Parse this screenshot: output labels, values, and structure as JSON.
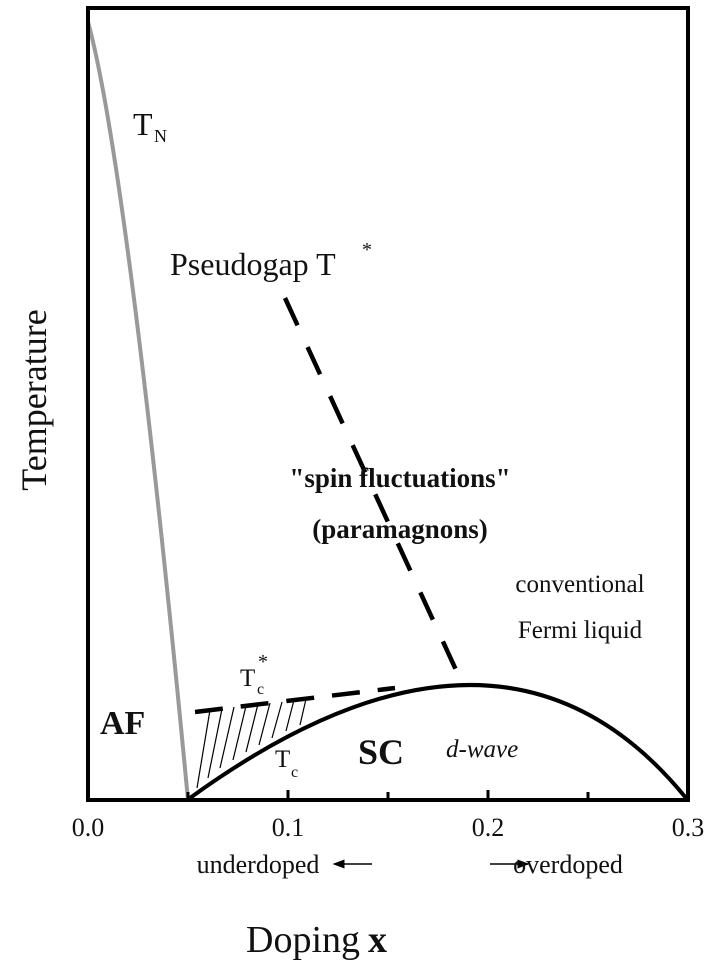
{
  "chart_data": {
    "type": "phase-diagram",
    "xlabel": "Doping",
    "xlabel_symbol": "x",
    "ylabel": "Temperature",
    "xlim": [
      0,
      0.3
    ],
    "xticks": [
      {
        "value": 0,
        "label": "0.0"
      },
      0.1,
      0.2,
      0.3
    ],
    "xminor_ticks": [
      0.05,
      0.15,
      0.25
    ],
    "annotations": {
      "tn": {
        "main": "T",
        "sub": "N"
      },
      "pseudogap": {
        "main": "Pseudogap T",
        "sup": "*"
      },
      "spin": "\"spin fluctuations\"",
      "paramagnons": "(paramagnons)",
      "conventional": "conventional",
      "fermi": "Fermi liquid",
      "af": "AF",
      "sc": "SC",
      "dwave": "d-wave",
      "tcstar": {
        "main": "T",
        "sup": "*",
        "sub": "c"
      },
      "tc": {
        "main": "T",
        "sub": "c"
      },
      "underdoped": "underdoped",
      "overdoped": "overdoped"
    }
  }
}
